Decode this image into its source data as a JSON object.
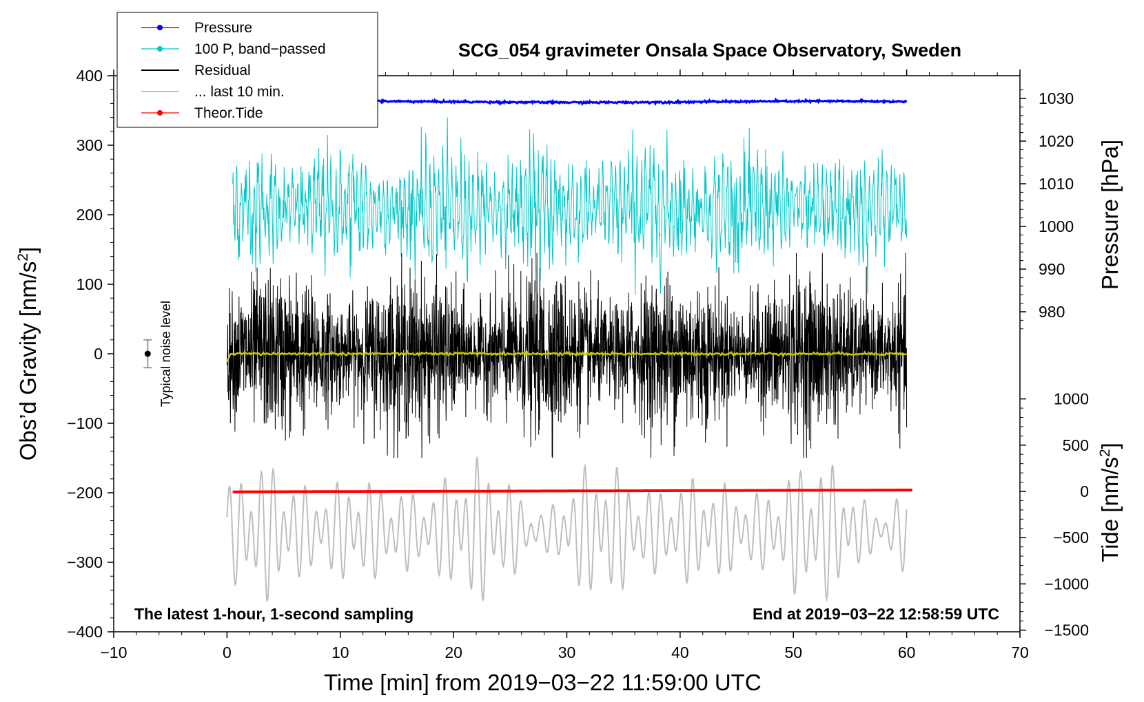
{
  "chart_data": {
    "type": "line",
    "title": "SCG_054 gravimeter Onsala Space Observatory, Sweden",
    "xlabel": "Time [min] from 2019−03−22 11:59:00 UTC",
    "ylabel_left": "Obs’d Gravity [nm/s²]",
    "ylabel_left_parts": [
      "Obs’d Gravity [nm/s",
      "2",
      "]"
    ],
    "ylabel_pressure": "Pressure [hPa]",
    "ylabel_tide": "Tide [nm/s²]",
    "ylabel_tide_parts": [
      "Tide [nm/s",
      "2",
      "]"
    ],
    "xlim": [
      -10,
      70
    ],
    "ylim": [
      -400,
      400
    ],
    "x_ticks": [
      "−10",
      "0",
      "10",
      "20",
      "30",
      "40",
      "50",
      "60",
      "70"
    ],
    "y_ticks": [
      "400",
      "300",
      "200",
      "100",
      "0",
      "−100",
      "−200",
      "−300",
      "−400"
    ],
    "pressure_ticks": [
      "1030",
      "1020",
      "1010",
      "1000",
      "990",
      "980"
    ],
    "tide_ticks": [
      "1000",
      "500",
      "0",
      "−500",
      "−1000",
      "−1500"
    ],
    "note_left": "The latest 1-hour, 1-second sampling",
    "note_right": "End at 2019−03−22 12:58:59 UTC",
    "noise_label": "Typical noise level",
    "legend": [
      {
        "label": "Pressure",
        "color": "#0000ff",
        "marker": true
      },
      {
        "label": "100 P, band−passed",
        "color": "#00c8c8",
        "marker": true
      },
      {
        "label": "Residual",
        "color": "#000000",
        "marker": false
      },
      {
        "label": "... last 10 min.",
        "color": "#bebebe",
        "marker": false
      },
      {
        "label": "Theor.Tide",
        "color": "#ff0000",
        "marker": true
      }
    ],
    "series": [
      {
        "name": "Pressure",
        "axis": "pressure",
        "color": "#0000ff",
        "x_range": [
          0.2,
          60
        ],
        "approx_level": 1029.2,
        "jitter": 0.3
      },
      {
        "name": "100 P, band-passed",
        "axis": "gravity",
        "color": "#00c8c8",
        "x_range": [
          0.5,
          60
        ],
        "center": 210,
        "amplitude": 70
      },
      {
        "name": "Residual",
        "axis": "gravity",
        "color": "#000000",
        "x_range": [
          0,
          60
        ],
        "center": 0,
        "amplitude": 75
      },
      {
        "name": "Residual smoothed",
        "axis": "gravity",
        "color": "#c8c800",
        "x_range": [
          0,
          60
        ],
        "center": 0,
        "amplitude": 2
      },
      {
        "name": "... last 10 min.",
        "axis": "gravity",
        "color": "#bebebe",
        "x_range": [
          0,
          60
        ],
        "center": -255,
        "amplitude": 70
      },
      {
        "name": "Theor.Tide",
        "axis": "tide",
        "color": "#ff0000",
        "x_range": [
          0.5,
          60.5
        ],
        "start": -5,
        "end": 15
      }
    ],
    "noise_bar": {
      "x": -7,
      "y": 0,
      "error": 20
    },
    "colors": {
      "pressure": "#0000ff",
      "bandpass": "#00c8c8",
      "residual": "#000000",
      "smooth": "#c8c800",
      "last10": "#bebebe",
      "tide": "#ff0000"
    }
  }
}
